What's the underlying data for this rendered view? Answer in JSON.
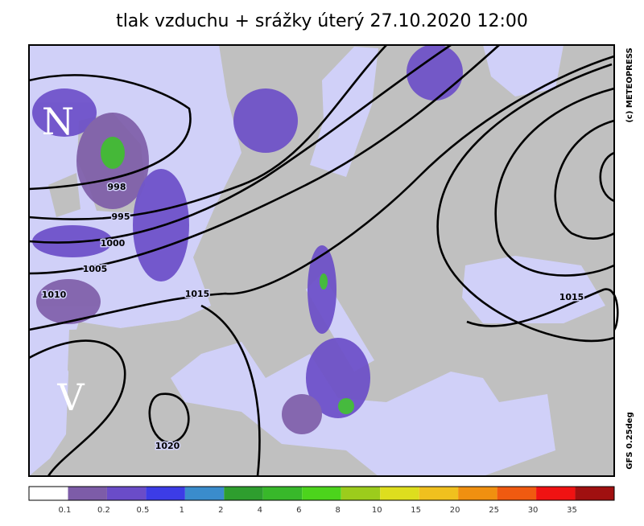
{
  "header": {
    "title": "tlak vzduchu + srážky   úterý 27.10.2020 12:00"
  },
  "map": {
    "compass": [
      "N",
      "V"
    ],
    "credit": "(c) METEOPRESS",
    "model": "GFS 0.25deg",
    "isobar_labels": [
      "998",
      "995",
      "1000",
      "1005",
      "1010",
      "1015",
      "1015",
      "1020"
    ]
  },
  "legend": {
    "colors": [
      "#ffffff",
      "#7d5ca8",
      "#6a4cc8",
      "#3c3ce6",
      "#3a8ccc",
      "#2e9e2e",
      "#38b82a",
      "#4cd41c",
      "#9ccc1c",
      "#dede1e",
      "#f0c01e",
      "#f09010",
      "#f05a10",
      "#f01212",
      "#a01010"
    ],
    "labels": [
      "0.1",
      "0.2",
      "0.5",
      "1",
      "2",
      "4",
      "6",
      "8",
      "10",
      "15",
      "20",
      "25",
      "30",
      "35"
    ]
  }
}
